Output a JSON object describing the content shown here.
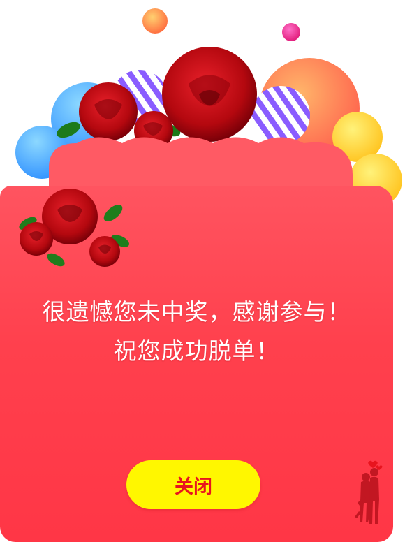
{
  "popup": {
    "message_line1": "很遗憾您未中奖，感谢参与！",
    "message_line2": "祝您成功脱单！",
    "close_label": "关闭"
  },
  "colors": {
    "card_top": "#ff5460",
    "card_bottom": "#ff3646",
    "button_bg": "#fff700",
    "button_text": "#e8141e",
    "message_text": "#ffffff"
  },
  "icons": [
    "rose-bouquet-icon",
    "rose-icon",
    "balloon-icon",
    "couple-silhouette-icon",
    "heart-icon"
  ]
}
